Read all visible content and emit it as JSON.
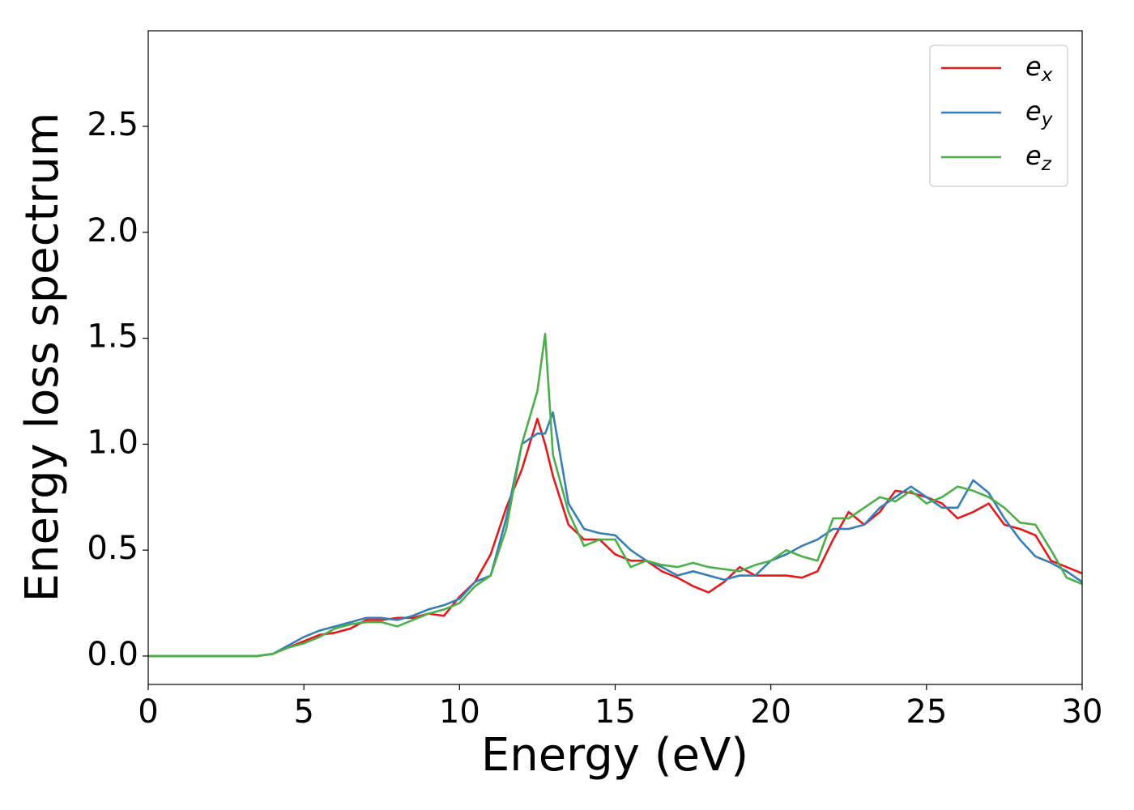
{
  "chart_data": {
    "type": "line",
    "xlabel": "Energy (eV)",
    "ylabel": "Energy loss spectrum",
    "xlim": [
      0,
      30
    ],
    "ylim": [
      -0.134,
      2.951
    ],
    "xticks": [
      0,
      5,
      10,
      15,
      20,
      25,
      30
    ],
    "yticks": [
      {
        "value": 0,
        "label": "0.0"
      },
      {
        "value": 0.5,
        "label": "0.5"
      },
      {
        "value": 1,
        "label": "1.0"
      },
      {
        "value": 1.5,
        "label": "1.5"
      },
      {
        "value": 2,
        "label": "2.0"
      },
      {
        "value": 2.5,
        "label": "2.5"
      }
    ],
    "legend": "upper right",
    "x": [
      0,
      0.5,
      1,
      1.5,
      2,
      2.5,
      3,
      3.5,
      4,
      4.5,
      5,
      5.5,
      6,
      6.5,
      7,
      7.5,
      8,
      8.5,
      9,
      9.5,
      10,
      10.5,
      11,
      11.5,
      12,
      12.5,
      12.75,
      13,
      13.5,
      14,
      14.5,
      15,
      15.5,
      16,
      16.5,
      17,
      17.5,
      18,
      18.5,
      19,
      19.5,
      20,
      20.5,
      21,
      21.5,
      22,
      22.5,
      23,
      23.5,
      24,
      24.5,
      25,
      25.5,
      26,
      26.5,
      27,
      27.5,
      28,
      28.5,
      29,
      29.5,
      30
    ],
    "series": [
      {
        "name": "e_x",
        "color": "#e41a1c",
        "values": [
          0,
          0,
          0,
          0,
          0,
          0,
          0,
          0,
          0.01,
          0.04,
          0.07,
          0.1,
          0.11,
          0.13,
          0.17,
          0.17,
          0.18,
          0.18,
          0.2,
          0.19,
          0.28,
          0.35,
          0.48,
          0.7,
          0.88,
          1.12,
          1.0,
          0.85,
          0.62,
          0.55,
          0.55,
          0.48,
          0.45,
          0.45,
          0.4,
          0.37,
          0.33,
          0.3,
          0.35,
          0.42,
          0.38,
          0.38,
          0.38,
          0.37,
          0.4,
          0.55,
          0.68,
          0.62,
          0.68,
          0.78,
          0.77,
          0.75,
          0.72,
          0.65,
          0.68,
          0.72,
          0.62,
          0.6,
          0.57,
          0.45,
          0.42,
          0.39
        ]
      },
      {
        "name": "e_y",
        "color": "#377eb8",
        "values": [
          0,
          0,
          0,
          0,
          0,
          0,
          0,
          0,
          0.01,
          0.05,
          0.09,
          0.12,
          0.14,
          0.16,
          0.18,
          0.18,
          0.17,
          0.19,
          0.22,
          0.24,
          0.27,
          0.35,
          0.38,
          0.65,
          1.0,
          1.05,
          1.05,
          1.15,
          0.72,
          0.6,
          0.58,
          0.57,
          0.5,
          0.45,
          0.42,
          0.38,
          0.4,
          0.38,
          0.36,
          0.38,
          0.38,
          0.45,
          0.48,
          0.52,
          0.55,
          0.6,
          0.6,
          0.62,
          0.7,
          0.75,
          0.8,
          0.75,
          0.7,
          0.7,
          0.83,
          0.77,
          0.65,
          0.55,
          0.47,
          0.44,
          0.4,
          0.35
        ]
      },
      {
        "name": "e_z",
        "color": "#4daf4a",
        "values": [
          0,
          0,
          0,
          0,
          0,
          0,
          0,
          0,
          0.01,
          0.04,
          0.06,
          0.09,
          0.13,
          0.15,
          0.16,
          0.16,
          0.14,
          0.17,
          0.2,
          0.22,
          0.25,
          0.33,
          0.38,
          0.6,
          1.0,
          1.25,
          1.52,
          0.95,
          0.68,
          0.52,
          0.55,
          0.55,
          0.42,
          0.45,
          0.43,
          0.42,
          0.44,
          0.42,
          0.41,
          0.4,
          0.43,
          0.45,
          0.5,
          0.47,
          0.45,
          0.65,
          0.65,
          0.7,
          0.75,
          0.73,
          0.78,
          0.72,
          0.75,
          0.8,
          0.78,
          0.75,
          0.7,
          0.63,
          0.62,
          0.5,
          0.37,
          0.34
        ]
      }
    ]
  }
}
